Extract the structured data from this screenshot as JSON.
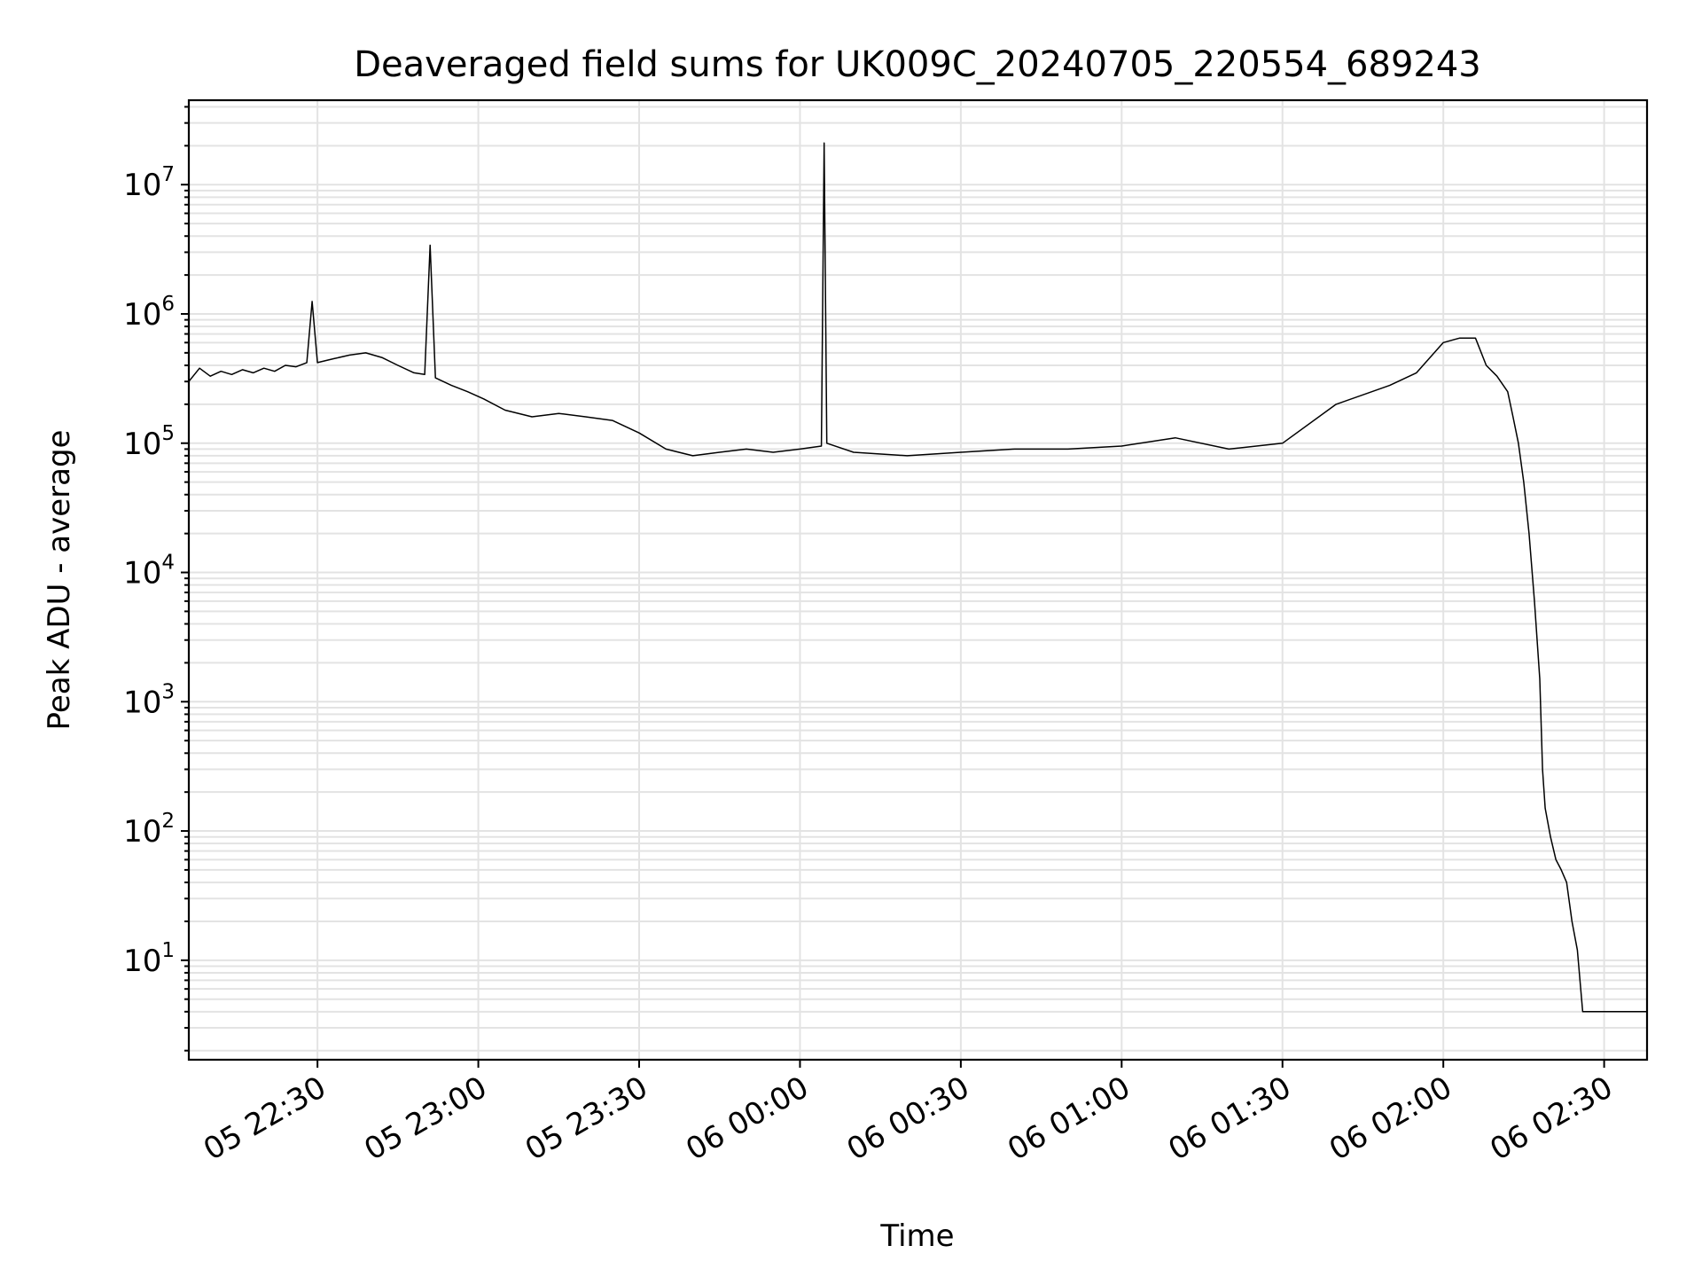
{
  "chart_data": {
    "type": "line",
    "title": "Deaveraged field sums for UK009C_20240705_220554_689243",
    "xlabel": "Time",
    "ylabel": "Peak ADU - average",
    "yscale": "log",
    "grid": "on (major and minor)",
    "ylim": [
      1.7,
      45000000
    ],
    "xlim": [
      "2024-07-05 22:06:00",
      "2024-07-06 02:38:00"
    ],
    "xticks": [
      {
        "t": "2024-07-05 22:30:00",
        "label": "05 22:30"
      },
      {
        "t": "2024-07-05 23:00:00",
        "label": "05 23:00"
      },
      {
        "t": "2024-07-05 23:30:00",
        "label": "05 23:30"
      },
      {
        "t": "2024-07-06 00:00:00",
        "label": "06 00:00"
      },
      {
        "t": "2024-07-06 00:30:00",
        "label": "06 00:30"
      },
      {
        "t": "2024-07-06 01:00:00",
        "label": "06 01:00"
      },
      {
        "t": "2024-07-06 01:30:00",
        "label": "06 01:30"
      },
      {
        "t": "2024-07-06 02:00:00",
        "label": "06 02:00"
      },
      {
        "t": "2024-07-06 02:30:00",
        "label": "06 02:30"
      }
    ],
    "yticks": [
      {
        "value": 10,
        "base": "10",
        "exp": "1"
      },
      {
        "value": 100,
        "base": "10",
        "exp": "2"
      },
      {
        "value": 1000,
        "base": "10",
        "exp": "3"
      },
      {
        "value": 10000,
        "base": "10",
        "exp": "4"
      },
      {
        "value": 100000,
        "base": "10",
        "exp": "5"
      },
      {
        "value": 1000000,
        "base": "10",
        "exp": "6"
      },
      {
        "value": 10000000,
        "base": "10",
        "exp": "7"
      }
    ],
    "series": [
      {
        "color": "#000000",
        "points": [
          [
            "2024-07-05 22:06:00",
            300000
          ],
          [
            "2024-07-05 22:08:00",
            380000
          ],
          [
            "2024-07-05 22:10:00",
            330000
          ],
          [
            "2024-07-05 22:12:00",
            360000
          ],
          [
            "2024-07-05 22:14:00",
            340000
          ],
          [
            "2024-07-05 22:16:00",
            370000
          ],
          [
            "2024-07-05 22:18:00",
            350000
          ],
          [
            "2024-07-05 22:20:00",
            380000
          ],
          [
            "2024-07-05 22:22:00",
            360000
          ],
          [
            "2024-07-05 22:24:00",
            400000
          ],
          [
            "2024-07-05 22:26:00",
            390000
          ],
          [
            "2024-07-05 22:28:00",
            420000
          ],
          [
            "2024-07-05 22:29:00",
            1250000
          ],
          [
            "2024-07-05 22:30:00",
            420000
          ],
          [
            "2024-07-05 22:33:00",
            450000
          ],
          [
            "2024-07-05 22:36:00",
            480000
          ],
          [
            "2024-07-05 22:39:00",
            500000
          ],
          [
            "2024-07-05 22:42:00",
            460000
          ],
          [
            "2024-07-05 22:45:00",
            400000
          ],
          [
            "2024-07-05 22:48:00",
            350000
          ],
          [
            "2024-07-05 22:50:00",
            340000
          ],
          [
            "2024-07-05 22:51:00",
            3400000
          ],
          [
            "2024-07-05 22:52:00",
            320000
          ],
          [
            "2024-07-05 22:55:00",
            280000
          ],
          [
            "2024-07-05 22:58:00",
            250000
          ],
          [
            "2024-07-05 23:01:00",
            220000
          ],
          [
            "2024-07-05 23:05:00",
            180000
          ],
          [
            "2024-07-05 23:10:00",
            160000
          ],
          [
            "2024-07-05 23:15:00",
            170000
          ],
          [
            "2024-07-05 23:20:00",
            160000
          ],
          [
            "2024-07-05 23:25:00",
            150000
          ],
          [
            "2024-07-05 23:30:00",
            120000
          ],
          [
            "2024-07-05 23:35:00",
            90000
          ],
          [
            "2024-07-05 23:40:00",
            80000
          ],
          [
            "2024-07-05 23:45:00",
            85000
          ],
          [
            "2024-07-05 23:50:00",
            90000
          ],
          [
            "2024-07-05 23:55:00",
            85000
          ],
          [
            "2024-07-06 00:00:00",
            90000
          ],
          [
            "2024-07-06 00:04:00",
            95000
          ],
          [
            "2024-07-06 00:04:30",
            21000000
          ],
          [
            "2024-07-06 00:05:00",
            100000
          ],
          [
            "2024-07-06 00:10:00",
            85000
          ],
          [
            "2024-07-06 00:20:00",
            80000
          ],
          [
            "2024-07-06 00:30:00",
            85000
          ],
          [
            "2024-07-06 00:40:00",
            90000
          ],
          [
            "2024-07-06 00:50:00",
            90000
          ],
          [
            "2024-07-06 01:00:00",
            95000
          ],
          [
            "2024-07-06 01:10:00",
            110000
          ],
          [
            "2024-07-06 01:20:00",
            90000
          ],
          [
            "2024-07-06 01:30:00",
            100000
          ],
          [
            "2024-07-06 01:40:00",
            200000
          ],
          [
            "2024-07-06 01:50:00",
            280000
          ],
          [
            "2024-07-06 01:55:00",
            350000
          ],
          [
            "2024-07-06 02:00:00",
            600000
          ],
          [
            "2024-07-06 02:03:00",
            650000
          ],
          [
            "2024-07-06 02:06:00",
            650000
          ],
          [
            "2024-07-06 02:08:00",
            400000
          ],
          [
            "2024-07-06 02:10:00",
            330000
          ],
          [
            "2024-07-06 02:12:00",
            250000
          ],
          [
            "2024-07-06 02:13:00",
            160000
          ],
          [
            "2024-07-06 02:14:00",
            100000
          ],
          [
            "2024-07-06 02:15:00",
            50000
          ],
          [
            "2024-07-06 02:16:00",
            20000
          ],
          [
            "2024-07-06 02:17:00",
            6000
          ],
          [
            "2024-07-06 02:18:00",
            1500
          ],
          [
            "2024-07-06 02:18:30",
            300
          ],
          [
            "2024-07-06 02:19:00",
            150
          ],
          [
            "2024-07-06 02:20:00",
            90
          ],
          [
            "2024-07-06 02:21:00",
            60
          ],
          [
            "2024-07-06 02:22:00",
            50
          ],
          [
            "2024-07-06 02:23:00",
            40
          ],
          [
            "2024-07-06 02:24:00",
            20
          ],
          [
            "2024-07-06 02:25:00",
            12
          ],
          [
            "2024-07-06 02:26:00",
            4
          ],
          [
            "2024-07-06 02:38:00",
            4
          ]
        ]
      }
    ]
  }
}
